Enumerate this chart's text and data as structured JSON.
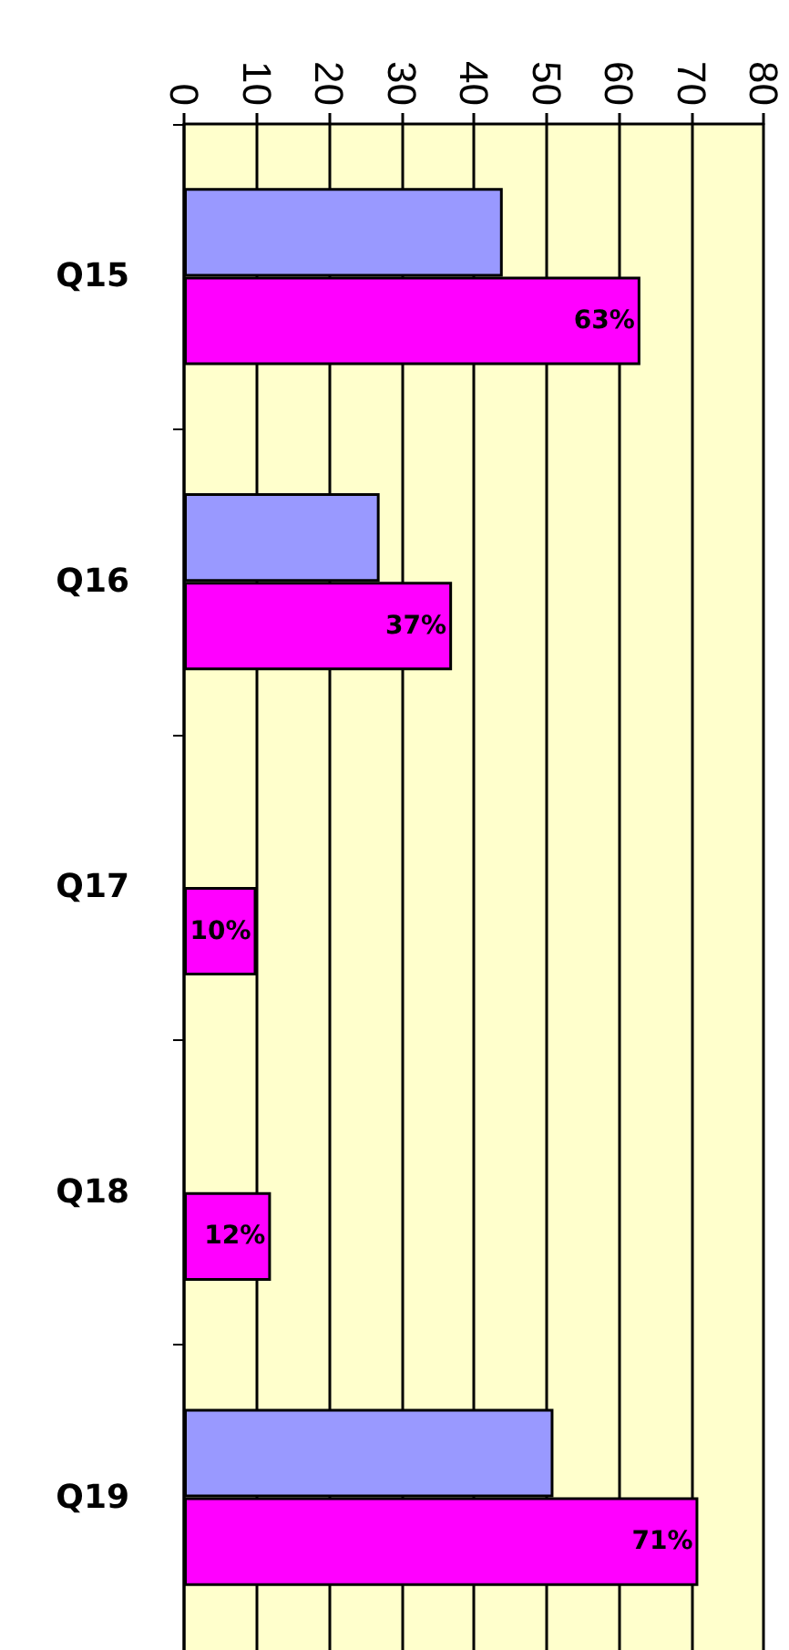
{
  "chart_data": {
    "type": "bar",
    "orientation": "horizontal",
    "categories": [
      "Q15",
      "Q16",
      "Q17",
      "Q18",
      "Q19"
    ],
    "series": [
      {
        "color": "#9999ff",
        "values": [
          44,
          27,
          null,
          null,
          51
        ]
      },
      {
        "color": "#ff00ff",
        "values": [
          63,
          37,
          10,
          12,
          71
        ],
        "value_labels": [
          "63%",
          "37%",
          "10%",
          "12%",
          "71%"
        ]
      }
    ],
    "xlim": [
      0,
      80
    ],
    "xticks": [
      0,
      10,
      20,
      30,
      40,
      50,
      60,
      70,
      80
    ],
    "grid": "x"
  }
}
